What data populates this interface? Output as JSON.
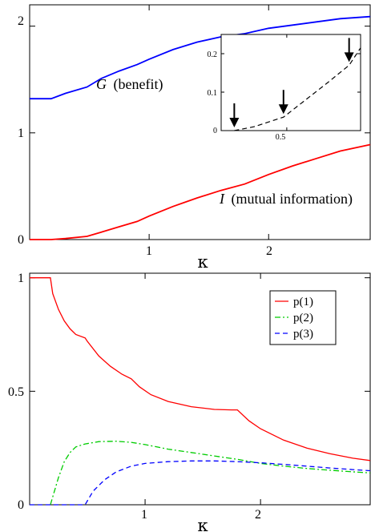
{
  "chart_data": [
    {
      "type": "line",
      "xlabel": "κ",
      "ylabel": "",
      "xlim": [
        0,
        2.85
      ],
      "ylim": [
        0,
        2.2
      ],
      "xticks": [
        1,
        2
      ],
      "yticks": [
        0,
        1,
        2
      ],
      "xtick_labels": [
        "1",
        "2"
      ],
      "ytick_labels": [
        "0",
        "1",
        "2"
      ],
      "series": [
        {
          "key": "G",
          "color": "#0000ff",
          "x": [
            0,
            0.18,
            0.3,
            0.48,
            0.6,
            0.75,
            0.9,
            1.0,
            1.2,
            1.4,
            1.6,
            1.8,
            2.0,
            2.2,
            2.4,
            2.6,
            2.85
          ],
          "y": [
            1.32,
            1.32,
            1.37,
            1.43,
            1.51,
            1.58,
            1.64,
            1.69,
            1.78,
            1.85,
            1.9,
            1.93,
            1.98,
            2.01,
            2.04,
            2.07,
            2.09
          ]
        },
        {
          "key": "I",
          "color": "#ff0000",
          "x": [
            0,
            0.18,
            0.3,
            0.48,
            0.6,
            0.75,
            0.9,
            1.0,
            1.2,
            1.4,
            1.6,
            1.8,
            2.0,
            2.2,
            2.4,
            2.6,
            2.85
          ],
          "y": [
            0,
            0,
            0.01,
            0.03,
            0.07,
            0.12,
            0.17,
            0.22,
            0.31,
            0.39,
            0.46,
            0.52,
            0.61,
            0.69,
            0.76,
            0.83,
            0.89
          ]
        }
      ],
      "annotations": [
        {
          "italic": "G",
          "text": "(benefit)",
          "at": [
            1.0,
            1.4
          ]
        },
        {
          "italic": "I",
          "text": "(mutual information)",
          "at": [
            1.85,
            0.33
          ]
        }
      ],
      "inset": {
        "type": "line",
        "xlim": [
          0.1,
          0.95
        ],
        "ylim": [
          0,
          0.25
        ],
        "xticks": [
          0.5
        ],
        "yticks": [
          0,
          0.1,
          0.2
        ],
        "xtick_labels": [
          "0.5"
        ],
        "ytick_labels": [
          "0",
          "0.1",
          "0.2"
        ],
        "series": [
          {
            "style": "dashed",
            "color": "#000000",
            "x": [
              0.18,
              0.3,
              0.48,
              0.6,
              0.75,
              0.88,
              0.95
            ],
            "y": [
              0,
              0.01,
              0.035,
              0.075,
              0.125,
              0.17,
              0.215
            ]
          }
        ],
        "arrows_at_x": [
          0.18,
          0.48,
          0.88
        ]
      }
    },
    {
      "type": "line",
      "xlabel": "κ",
      "ylabel": "",
      "xlim": [
        0,
        2.95
      ],
      "ylim": [
        0,
        1.02
      ],
      "xticks": [
        1,
        2
      ],
      "yticks": [
        0,
        0.5,
        1
      ],
      "xtick_labels": [
        "1",
        "2"
      ],
      "ytick_labels": [
        "0",
        "0.5",
        "1"
      ],
      "legend": "top-right",
      "series": [
        {
          "name": "p(1)",
          "color": "#ff0000",
          "style": "solid",
          "x": [
            0,
            0.18,
            0.2,
            0.25,
            0.3,
            0.35,
            0.4,
            0.48,
            0.5,
            0.6,
            0.7,
            0.8,
            0.88,
            0.95,
            1.05,
            1.2,
            1.4,
            1.6,
            1.75,
            1.8,
            1.9,
            2.0,
            2.2,
            2.4,
            2.6,
            2.8,
            2.95
          ],
          "y": [
            1.0,
            1.0,
            0.93,
            0.86,
            0.81,
            0.775,
            0.75,
            0.735,
            0.72,
            0.655,
            0.61,
            0.575,
            0.555,
            0.52,
            0.485,
            0.455,
            0.432,
            0.42,
            0.418,
            0.418,
            0.37,
            0.335,
            0.285,
            0.25,
            0.225,
            0.205,
            0.195
          ]
        },
        {
          "name": "p(2)",
          "color": "#00cc00",
          "style": "dashdot",
          "x": [
            0.18,
            0.25,
            0.3,
            0.35,
            0.4,
            0.48,
            0.6,
            0.75,
            0.88,
            1.0,
            1.2,
            1.4,
            1.6,
            1.8,
            2.0,
            2.2,
            2.4,
            2.6,
            2.8,
            2.95
          ],
          "y": [
            0,
            0.12,
            0.19,
            0.23,
            0.255,
            0.268,
            0.278,
            0.28,
            0.275,
            0.265,
            0.245,
            0.23,
            0.215,
            0.2,
            0.182,
            0.17,
            0.16,
            0.152,
            0.145,
            0.14
          ]
        },
        {
          "name": "p(3)",
          "color": "#0000ff",
          "style": "dashed",
          "x": [
            0,
            0.48,
            0.55,
            0.65,
            0.75,
            0.88,
            1.0,
            1.2,
            1.4,
            1.6,
            1.8,
            2.0,
            2.2,
            2.4,
            2.6,
            2.8,
            2.95
          ],
          "y": [
            0,
            0,
            0.06,
            0.11,
            0.145,
            0.17,
            0.182,
            0.19,
            0.193,
            0.193,
            0.19,
            0.185,
            0.178,
            0.17,
            0.162,
            0.155,
            0.15
          ]
        }
      ]
    }
  ]
}
